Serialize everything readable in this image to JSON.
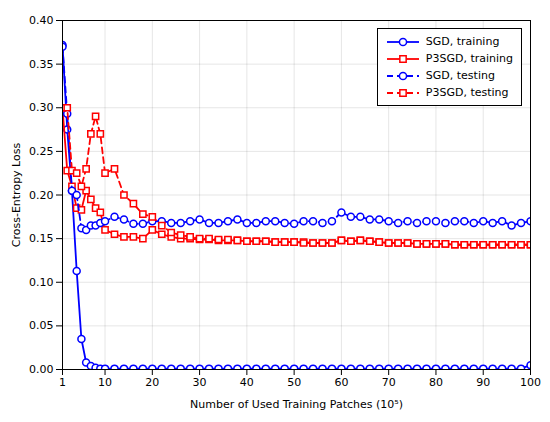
{
  "chart_data": {
    "type": "line",
    "xlabel": "Number of Used Training Patches (10⁵)",
    "ylabel": "Cross-Entropy Loss",
    "x": [
      1,
      2,
      3,
      4,
      5,
      6,
      7,
      8,
      9,
      10,
      12,
      14,
      16,
      18,
      20,
      22,
      24,
      26,
      28,
      30,
      32,
      34,
      36,
      38,
      40,
      42,
      44,
      46,
      48,
      50,
      52,
      54,
      56,
      58,
      60,
      62,
      64,
      66,
      68,
      70,
      72,
      74,
      76,
      78,
      80,
      82,
      84,
      86,
      88,
      90,
      92,
      94,
      96,
      98,
      100
    ],
    "series": [
      {
        "name": "SGD, training",
        "color": "#0000FF",
        "line_style": "solid",
        "marker": "circle",
        "values": [
          0.372,
          0.275,
          0.205,
          0.113,
          0.035,
          0.008,
          0.004,
          0.002,
          0.001,
          0.001,
          0.001,
          0.001,
          0.001,
          0.001,
          0.001,
          0.001,
          0.001,
          0.001,
          0.001,
          0.001,
          0.001,
          0.001,
          0.001,
          0.001,
          0.001,
          0.001,
          0.001,
          0.001,
          0.001,
          0.001,
          0.001,
          0.001,
          0.001,
          0.001,
          0.001,
          0.001,
          0.001,
          0.001,
          0.001,
          0.001,
          0.001,
          0.001,
          0.001,
          0.001,
          0.001,
          0.001,
          0.001,
          0.001,
          0.001,
          0.001,
          0.001,
          0.001,
          0.001,
          0.001,
          0.005
        ]
      },
      {
        "name": "P3SGD, training",
        "color": "#FF0000",
        "line_style": "solid",
        "marker": "square",
        "values": [
          0.3,
          0.228,
          0.21,
          0.185,
          0.183,
          0.205,
          0.195,
          0.185,
          0.18,
          0.16,
          0.155,
          0.152,
          0.152,
          0.15,
          0.16,
          0.155,
          0.152,
          0.15,
          0.15,
          0.149,
          0.149,
          0.148,
          0.148,
          0.148,
          0.147,
          0.147,
          0.147,
          0.146,
          0.146,
          0.146,
          0.146,
          0.145,
          0.145,
          0.145,
          0.148,
          0.147,
          0.148,
          0.147,
          0.146,
          0.145,
          0.145,
          0.145,
          0.144,
          0.144,
          0.144,
          0.144,
          0.143,
          0.143,
          0.143,
          0.143,
          0.143,
          0.143,
          0.143,
          0.143,
          0.143
        ]
      },
      {
        "name": "SGD, testing",
        "color": "#0000FF",
        "line_style": "dashed",
        "marker": "circle",
        "values": [
          0.37,
          0.293,
          0.205,
          0.2,
          0.162,
          0.16,
          0.165,
          0.165,
          0.168,
          0.17,
          0.175,
          0.172,
          0.167,
          0.167,
          0.17,
          0.17,
          0.168,
          0.168,
          0.17,
          0.172,
          0.168,
          0.168,
          0.17,
          0.172,
          0.168,
          0.168,
          0.17,
          0.17,
          0.168,
          0.167,
          0.17,
          0.17,
          0.168,
          0.17,
          0.18,
          0.175,
          0.175,
          0.172,
          0.172,
          0.17,
          0.168,
          0.17,
          0.168,
          0.17,
          0.17,
          0.168,
          0.17,
          0.17,
          0.168,
          0.17,
          0.168,
          0.17,
          0.165,
          0.168,
          0.17
        ]
      },
      {
        "name": "P3SGD, testing",
        "color": "#FF0000",
        "line_style": "dashed",
        "marker": "square",
        "values": [
          0.3,
          0.3,
          0.228,
          0.225,
          0.21,
          0.23,
          0.27,
          0.29,
          0.27,
          0.225,
          0.23,
          0.2,
          0.19,
          0.178,
          0.175,
          0.165,
          0.157,
          0.154,
          0.152,
          0.15,
          0.15,
          0.149,
          0.149,
          0.148,
          0.147,
          0.147,
          0.147,
          0.146,
          0.146,
          0.146,
          0.145,
          0.145,
          0.145,
          0.145,
          0.148,
          0.147,
          0.148,
          0.147,
          0.146,
          0.145,
          0.145,
          0.145,
          0.144,
          0.144,
          0.144,
          0.144,
          0.143,
          0.143,
          0.143,
          0.143,
          0.143,
          0.143,
          0.143,
          0.143,
          0.143
        ]
      }
    ],
    "xlim": [
      1,
      100
    ],
    "ylim": [
      0.0,
      0.4
    ],
    "xticks": [
      1,
      10,
      20,
      30,
      40,
      50,
      60,
      70,
      80,
      90,
      100
    ],
    "yticks": [
      {
        "value": 0.0,
        "label": "0.00"
      },
      0.05,
      {
        "value": 0.1,
        "label": "0.10"
      },
      0.15,
      {
        "value": 0.2,
        "label": "0.20"
      },
      0.25,
      {
        "value": 0.3,
        "label": "0.30"
      },
      0.35,
      {
        "value": 0.4,
        "label": "0.40"
      }
    ],
    "grid": true,
    "legend": "upper right"
  }
}
